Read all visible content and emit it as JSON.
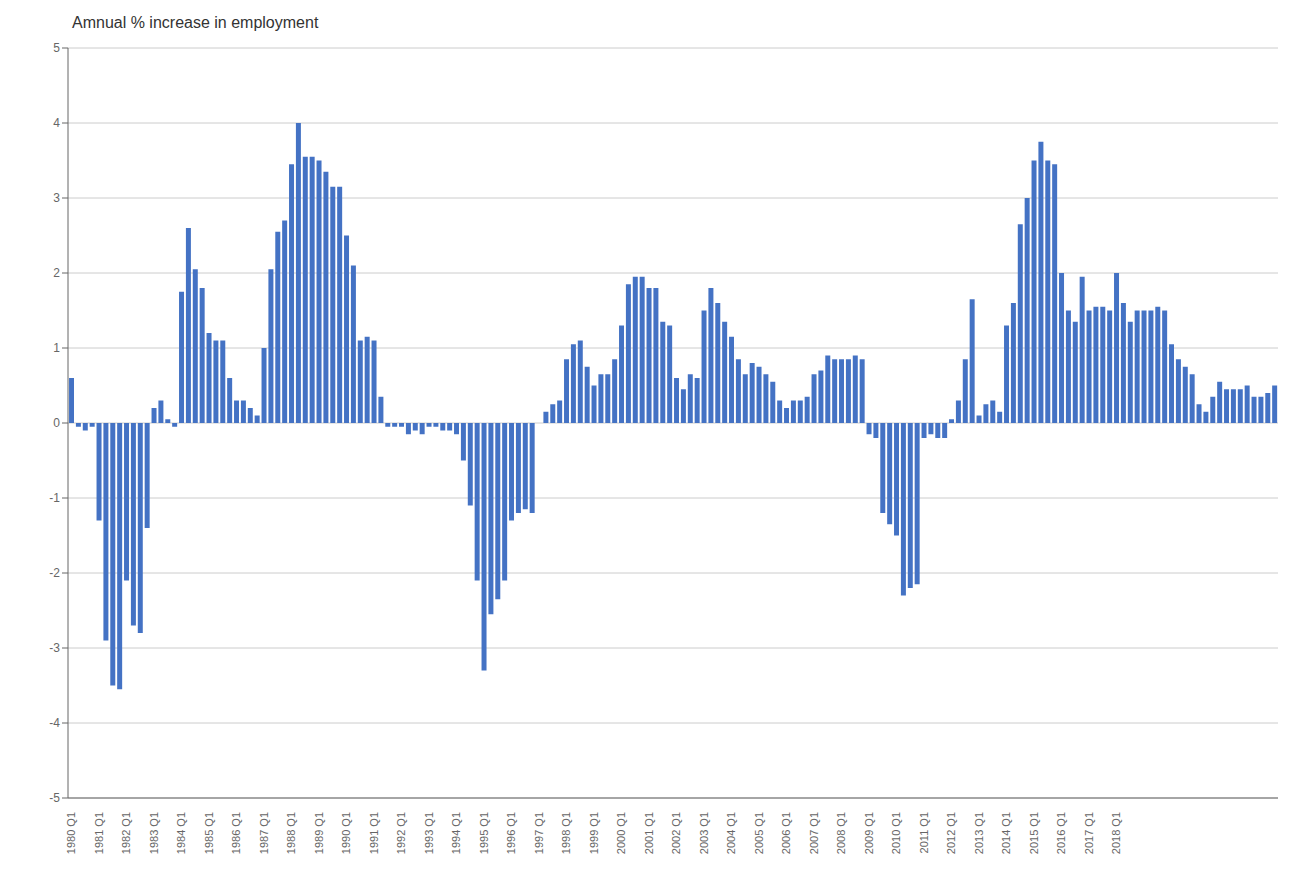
{
  "chart_data": {
    "type": "bar",
    "title": "Amnual % increase in employment",
    "color": "#4472c4",
    "ylim": [
      -5,
      5
    ],
    "yticks": [
      -5,
      -4,
      -3,
      -2,
      -1,
      0,
      1,
      2,
      3,
      4,
      5
    ],
    "grid": true,
    "categories": [
      "1980 Q1",
      null,
      null,
      null,
      "1981 Q1",
      null,
      null,
      null,
      "1982 Q1",
      null,
      null,
      null,
      "1983 Q1",
      null,
      null,
      null,
      "1984 Q1",
      null,
      null,
      null,
      "1985 Q1",
      null,
      null,
      null,
      "1986 Q1",
      null,
      null,
      null,
      "1987 Q1",
      null,
      null,
      null,
      "1988 Q1",
      null,
      null,
      null,
      "1989 Q1",
      null,
      null,
      null,
      "1990 Q1",
      null,
      null,
      null,
      "1991 Q1",
      null,
      null,
      null,
      "1992 Q1",
      null,
      null,
      null,
      "1993 Q1",
      null,
      null,
      null,
      "1994 Q1",
      null,
      null,
      null,
      "1995 Q1",
      null,
      null,
      null,
      "1996 Q1",
      null,
      null,
      null,
      "1997 Q1",
      null,
      null,
      null,
      "1998 Q1",
      null,
      null,
      null,
      "1999 Q1",
      null,
      null,
      null,
      "2000 Q1",
      null,
      null,
      null,
      "2001 Q1",
      null,
      null,
      null,
      "2002 Q1",
      null,
      null,
      null,
      "2003 Q1",
      null,
      null,
      null,
      "2004 Q1",
      null,
      null,
      null,
      "2005 Q1",
      null,
      null,
      null,
      "2006 Q1",
      null,
      null,
      null,
      "2007 Q1",
      null,
      null,
      null,
      "2008 Q1",
      null,
      null,
      null,
      "2009 Q1",
      null,
      null,
      null,
      "2010 Q1",
      null,
      null,
      null,
      "2011 Q1",
      null,
      null,
      null,
      "2012 Q1",
      null,
      null,
      null,
      "2013 Q1",
      null,
      null,
      null,
      "2014 Q1",
      null,
      null,
      null,
      "2015 Q1",
      null,
      null,
      null,
      "2016 Q1",
      null,
      null,
      null,
      "2017 Q1",
      null,
      null,
      null,
      "2018 Q1",
      null,
      null,
      null,
      null,
      null,
      null,
      null,
      null,
      null,
      null,
      null,
      null,
      null,
      null,
      null,
      null,
      null,
      null,
      null,
      null,
      null,
      null,
      null
    ],
    "values": [
      0.6,
      -0.05,
      -0.1,
      -0.05,
      -1.3,
      -2.9,
      -3.5,
      -3.55,
      -2.1,
      -2.7,
      -2.8,
      -1.4,
      0.2,
      0.3,
      0.05,
      -0.05,
      1.75,
      2.6,
      2.05,
      1.8,
      1.2,
      1.1,
      1.1,
      0.6,
      0.3,
      0.3,
      0.2,
      0.1,
      1.0,
      2.05,
      2.55,
      2.7,
      3.45,
      4.0,
      3.55,
      3.55,
      3.5,
      3.35,
      3.15,
      3.15,
      2.5,
      2.1,
      1.1,
      1.15,
      1.1,
      0.35,
      -0.05,
      -0.05,
      -0.05,
      -0.15,
      -0.1,
      -0.15,
      -0.05,
      -0.05,
      -0.1,
      -0.1,
      -0.15,
      -0.5,
      -1.1,
      -2.1,
      -3.3,
      -2.55,
      -2.35,
      -2.1,
      -1.3,
      -1.2,
      -1.15,
      -1.2,
      0.0,
      0.15,
      0.25,
      0.3,
      0.85,
      1.05,
      1.1,
      0.75,
      0.5,
      0.65,
      0.65,
      0.85,
      1.3,
      1.85,
      1.95,
      1.95,
      1.8,
      1.8,
      1.35,
      1.3,
      0.6,
      0.45,
      0.65,
      0.6,
      1.5,
      1.8,
      1.6,
      1.35,
      1.15,
      0.85,
      0.65,
      0.8,
      0.75,
      0.65,
      0.55,
      0.3,
      0.2,
      0.3,
      0.3,
      0.35,
      0.65,
      0.7,
      0.9,
      0.85,
      0.85,
      0.85,
      0.9,
      0.85,
      -0.15,
      -0.2,
      -1.2,
      -1.35,
      -1.5,
      -2.3,
      -2.2,
      -2.15,
      -0.2,
      -0.15,
      -0.2,
      -0.2,
      0.05,
      0.3,
      0.85,
      1.65,
      0.1,
      0.25,
      0.3,
      0.15,
      1.3,
      1.6,
      2.65,
      3.0,
      3.5,
      3.75,
      3.5,
      3.45,
      2.0,
      1.5,
      1.35,
      1.95,
      1.5,
      1.55,
      1.55,
      1.5,
      2.0,
      1.6,
      1.35,
      1.5,
      1.5,
      1.5,
      1.55,
      1.5,
      1.05,
      0.85,
      0.75,
      0.65,
      0.25,
      0.15,
      0.35,
      0.55,
      0.45,
      0.45,
      0.45,
      0.5,
      0.35,
      0.35,
      0.4,
      0.5
    ]
  }
}
